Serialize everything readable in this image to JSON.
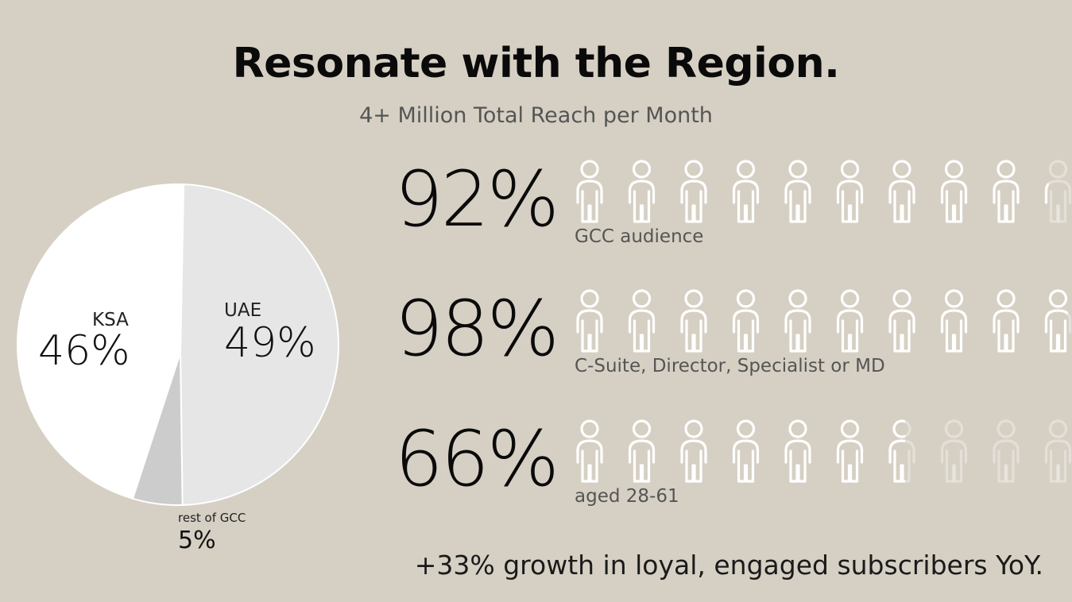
{
  "title": "Resonate with the Region.",
  "subtitle": "4+ Million Total Reach per Month",
  "chart_data": [
    {
      "type": "pie",
      "categories": [
        "KSA",
        "UAE",
        "rest of GCC"
      ],
      "values": [
        46,
        49,
        5
      ],
      "labels": [
        "46%",
        "49%",
        "5%"
      ],
      "colors": [
        "#ffffff",
        "#e6e6e6",
        "#cccccc"
      ]
    },
    {
      "type": "pictograph",
      "icon": "person-icon",
      "icons_per_row": 10,
      "rows": [
        {
          "value": 92,
          "value_label": "92%",
          "label": "GCC audience"
        },
        {
          "value": 98,
          "value_label": "98%",
          "label": "C-Suite, Director, Specialist or MD"
        },
        {
          "value": 66,
          "value_label": "66%",
          "label": "aged 28-61"
        }
      ]
    }
  ],
  "footer": "+33% growth in loyal, engaged subscribers YoY."
}
